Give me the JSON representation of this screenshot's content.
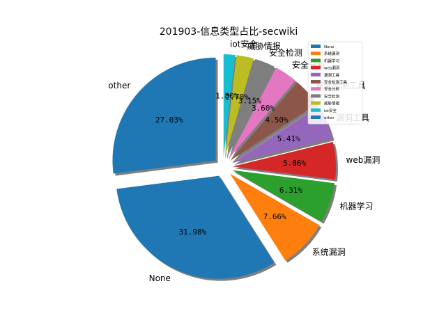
{
  "chart_data": {
    "type": "pie",
    "title": "201903-信息类型占比-secwiki",
    "start_angle_deg": 90,
    "direction": "counterclockwise",
    "shadow": true,
    "legend_position": "top-right",
    "slices": [
      {
        "label": "other",
        "legend": "other",
        "pct_label": "27.03%",
        "value": 27.03,
        "color": "#1f77b4",
        "exploded": true
      },
      {
        "label": "None",
        "legend": "None",
        "pct_label": "31.98%",
        "value": 31.98,
        "color": "#1f77b4",
        "exploded": true
      },
      {
        "label": "系统漏洞",
        "legend": "系统漏洞",
        "pct_label": "7.66%",
        "value": 7.66,
        "color": "#ff7f0e",
        "exploded": true
      },
      {
        "label": "机器学习",
        "legend": "机器学习",
        "pct_label": "6.31%",
        "value": 6.31,
        "color": "#2ca02c",
        "exploded": true
      },
      {
        "label": "web漏洞",
        "legend": "web漏洞",
        "pct_label": "5.86%",
        "value": 5.86,
        "color": "#d62728",
        "exploded": true
      },
      {
        "label": "漏洞工具",
        "legend": "漏洞工具",
        "pct_label": "5.41%",
        "value": 5.41,
        "color": "#9467bd",
        "exploded": true
      },
      {
        "label": "安全检测工具",
        "legend": "安全检测工具",
        "pct_label": "4.50%",
        "value": 4.5,
        "color": "#8c564b",
        "exploded": true
      },
      {
        "label": "安全分析",
        "legend": "安全分析",
        "pct_label": "3.60%",
        "value": 3.6,
        "color": "#e377c2",
        "exploded": true
      },
      {
        "label": "安全检测",
        "legend": "安全检测",
        "pct_label": "3.15%",
        "value": 3.15,
        "color": "#7f7f7f",
        "exploded": true
      },
      {
        "label": "威胁情报",
        "legend": "威胁情报",
        "pct_label": "2.70%",
        "value": 2.7,
        "color": "#bcbd22",
        "exploded": true
      },
      {
        "label": "iot安全",
        "legend": "iot安全",
        "pct_label": "1.80%",
        "value": 1.8,
        "color": "#17becf",
        "exploded": true
      }
    ],
    "legend_order": [
      "None",
      "系统漏洞",
      "机器学习",
      "web漏洞",
      "漏洞工具",
      "安全检测工具",
      "安全分析",
      "安全检测",
      "威胁情报",
      "iot安全",
      "other"
    ]
  }
}
